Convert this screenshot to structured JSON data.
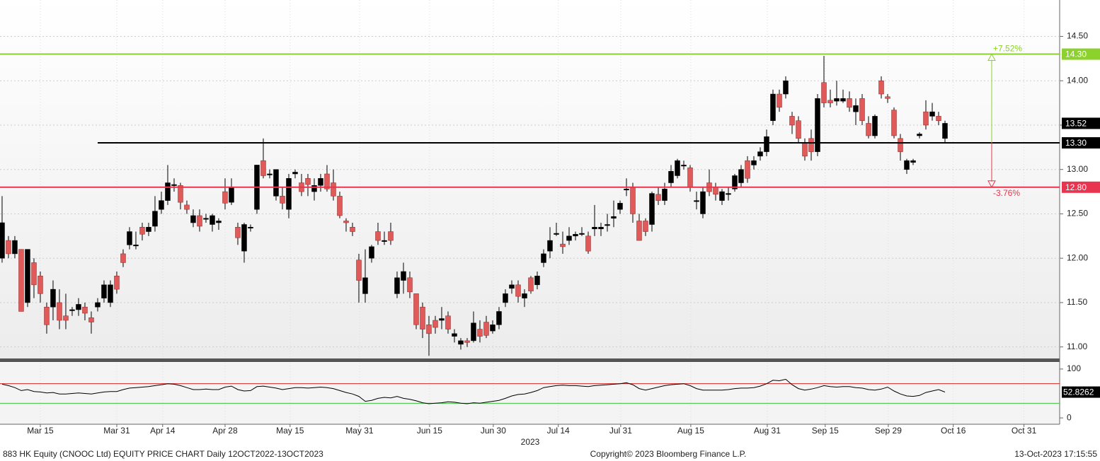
{
  "chart_data": {
    "type": "candlestick",
    "title": "883 HK Equity (CNOOC Ltd) EQUITY PRICE CHART  Daily 12OCT2022-13OCT2023",
    "copyright": "Copyright© 2023 Bloomberg Finance L.P.",
    "timestamp": "13-Oct-2023 17:15:55",
    "year_label": "2023",
    "up_color": "#000000",
    "down_color": "#e05a5a",
    "candles": [
      [
        12.0,
        12.7,
        11.95,
        12.4
      ],
      [
        12.2,
        12.25,
        12.0,
        12.05
      ],
      [
        12.05,
        12.25,
        12.0,
        12.2
      ],
      [
        12.1,
        12.1,
        11.4,
        11.4
      ],
      [
        11.5,
        12.1,
        11.45,
        12.1
      ],
      [
        11.95,
        12.0,
        11.55,
        11.7
      ],
      [
        11.8,
        11.85,
        11.5,
        11.6
      ],
      [
        11.45,
        11.5,
        11.15,
        11.25
      ],
      [
        11.45,
        11.75,
        11.3,
        11.65
      ],
      [
        11.5,
        11.65,
        11.2,
        11.3
      ],
      [
        11.35,
        11.6,
        11.2,
        11.3
      ],
      [
        11.42,
        11.45,
        11.35,
        11.42
      ],
      [
        11.42,
        11.55,
        11.35,
        11.48
      ],
      [
        11.45,
        11.5,
        11.3,
        11.38
      ],
      [
        11.33,
        11.4,
        11.15,
        11.28
      ],
      [
        11.45,
        11.55,
        11.4,
        11.5
      ],
      [
        11.55,
        11.75,
        11.5,
        11.7
      ],
      [
        11.5,
        11.75,
        11.45,
        11.7
      ],
      [
        11.8,
        11.85,
        11.6,
        11.65
      ],
      [
        12.05,
        12.1,
        11.9,
        11.95
      ],
      [
        12.15,
        12.35,
        12.1,
        12.3
      ],
      [
        12.15,
        12.3,
        12.1,
        12.15
      ],
      [
        12.35,
        12.4,
        12.2,
        12.27
      ],
      [
        12.3,
        12.4,
        12.25,
        12.35
      ],
      [
        12.36,
        12.7,
        12.3,
        12.53
      ],
      [
        12.55,
        12.75,
        12.5,
        12.65
      ],
      [
        12.65,
        13.05,
        12.6,
        12.85
      ],
      [
        12.83,
        12.9,
        12.75,
        12.83
      ],
      [
        12.82,
        12.85,
        12.55,
        12.63
      ],
      [
        12.6,
        12.65,
        12.5,
        12.55
      ],
      [
        12.4,
        12.55,
        12.35,
        12.48
      ],
      [
        12.48,
        12.55,
        12.3,
        12.36
      ],
      [
        12.45,
        12.5,
        12.4,
        12.45
      ],
      [
        12.38,
        12.5,
        12.3,
        12.48
      ],
      [
        12.4,
        12.45,
        12.32,
        12.42
      ],
      [
        12.75,
        12.9,
        12.55,
        12.62
      ],
      [
        12.63,
        12.9,
        12.6,
        12.8
      ],
      [
        12.35,
        12.4,
        12.15,
        12.23
      ],
      [
        12.08,
        12.4,
        11.95,
        12.38
      ],
      [
        12.35,
        12.38,
        12.3,
        12.35
      ],
      [
        12.55,
        13.05,
        12.5,
        13.05
      ],
      [
        13.1,
        13.35,
        12.9,
        12.93
      ],
      [
        12.95,
        13.0,
        12.9,
        12.95
      ],
      [
        12.7,
        13.0,
        12.65,
        13.0
      ],
      [
        12.7,
        12.8,
        12.55,
        12.62
      ],
      [
        12.55,
        12.95,
        12.45,
        12.9
      ],
      [
        12.95,
        13.0,
        12.9,
        12.97
      ],
      [
        12.85,
        12.95,
        12.7,
        12.75
      ],
      [
        12.9,
        12.95,
        12.7,
        12.83
      ],
      [
        12.75,
        12.9,
        12.65,
        12.82
      ],
      [
        12.82,
        12.95,
        12.75,
        12.9
      ],
      [
        12.95,
        13.05,
        12.75,
        12.78
      ],
      [
        12.85,
        13.0,
        12.65,
        12.7
      ],
      [
        12.7,
        12.75,
        12.45,
        12.48
      ],
      [
        12.42,
        12.45,
        12.3,
        12.4
      ],
      [
        12.35,
        12.4,
        12.25,
        12.3
      ],
      [
        11.98,
        12.05,
        11.5,
        11.75
      ],
      [
        11.6,
        12.1,
        11.5,
        11.78
      ],
      [
        12.0,
        12.15,
        11.95,
        12.13
      ],
      [
        12.3,
        12.4,
        12.15,
        12.2
      ],
      [
        12.2,
        12.3,
        12.15,
        12.2
      ],
      [
        12.3,
        12.4,
        12.15,
        12.2
      ],
      [
        11.6,
        11.85,
        11.55,
        11.78
      ],
      [
        11.75,
        11.95,
        11.6,
        11.85
      ],
      [
        11.78,
        11.85,
        11.55,
        11.62
      ],
      [
        11.6,
        11.6,
        11.2,
        11.25
      ],
      [
        11.45,
        11.5,
        11.1,
        11.2
      ],
      [
        11.25,
        11.35,
        10.9,
        11.15
      ],
      [
        11.3,
        11.35,
        11.15,
        11.22
      ],
      [
        11.3,
        11.45,
        11.2,
        11.32
      ],
      [
        11.35,
        11.4,
        11.15,
        11.2
      ],
      [
        11.12,
        11.2,
        11.05,
        11.15
      ],
      [
        11.03,
        11.1,
        10.97,
        11.07
      ],
      [
        11.07,
        11.1,
        11.0,
        11.05
      ],
      [
        11.07,
        11.4,
        11.05,
        11.27
      ],
      [
        11.2,
        11.3,
        11.05,
        11.12
      ],
      [
        11.28,
        11.35,
        11.1,
        11.13
      ],
      [
        11.18,
        11.3,
        11.15,
        11.25
      ],
      [
        11.25,
        11.45,
        11.2,
        11.4
      ],
      [
        11.5,
        11.65,
        11.45,
        11.6
      ],
      [
        11.66,
        11.75,
        11.6,
        11.7
      ],
      [
        11.7,
        11.75,
        11.5,
        11.57
      ],
      [
        11.55,
        11.65,
        11.45,
        11.6
      ],
      [
        11.78,
        11.8,
        11.6,
        11.63
      ],
      [
        11.7,
        11.85,
        11.65,
        11.8
      ],
      [
        11.95,
        12.1,
        11.9,
        12.05
      ],
      [
        12.08,
        12.35,
        12.0,
        12.2
      ],
      [
        12.28,
        12.4,
        12.25,
        12.28
      ],
      [
        12.16,
        12.3,
        12.05,
        12.13
      ],
      [
        12.2,
        12.35,
        12.15,
        12.25
      ],
      [
        12.25,
        12.3,
        12.2,
        12.27
      ],
      [
        12.28,
        12.35,
        12.25,
        12.28
      ],
      [
        12.25,
        12.3,
        12.05,
        12.08
      ],
      [
        12.33,
        12.6,
        12.25,
        12.35
      ],
      [
        12.33,
        12.4,
        12.25,
        12.35
      ],
      [
        12.38,
        12.5,
        12.3,
        12.38
      ],
      [
        12.45,
        12.65,
        12.35,
        12.47
      ],
      [
        12.55,
        12.65,
        12.5,
        12.62
      ],
      [
        12.78,
        12.9,
        12.7,
        12.78
      ],
      [
        12.8,
        12.85,
        12.4,
        12.5
      ],
      [
        12.42,
        12.5,
        12.2,
        12.2
      ],
      [
        12.42,
        12.45,
        12.25,
        12.3
      ],
      [
        12.38,
        12.75,
        12.3,
        12.73
      ],
      [
        12.72,
        12.8,
        12.6,
        12.65
      ],
      [
        12.65,
        12.85,
        12.6,
        12.78
      ],
      [
        12.85,
        13.05,
        12.8,
        12.98
      ],
      [
        12.93,
        13.12,
        12.9,
        13.1
      ],
      [
        13.05,
        13.1,
        13.0,
        13.05
      ],
      [
        13.02,
        13.05,
        12.75,
        12.8
      ],
      [
        12.65,
        12.75,
        12.55,
        12.65
      ],
      [
        12.5,
        12.8,
        12.45,
        12.75
      ],
      [
        12.85,
        13.0,
        12.7,
        12.75
      ],
      [
        12.8,
        12.85,
        12.65,
        12.72
      ],
      [
        12.65,
        12.78,
        12.6,
        12.75
      ],
      [
        12.72,
        12.8,
        12.65,
        12.73
      ],
      [
        12.78,
        12.95,
        12.75,
        12.93
      ],
      [
        12.85,
        13.05,
        12.8,
        13.0
      ],
      [
        13.1,
        13.15,
        12.85,
        12.9
      ],
      [
        13.05,
        13.15,
        13.0,
        13.1
      ],
      [
        13.15,
        13.25,
        13.1,
        13.2
      ],
      [
        13.2,
        13.45,
        13.15,
        13.37
      ],
      [
        13.55,
        13.9,
        13.5,
        13.85
      ],
      [
        13.85,
        13.9,
        13.65,
        13.7
      ],
      [
        13.85,
        14.05,
        13.8,
        14.0
      ],
      [
        13.6,
        13.65,
        13.4,
        13.5
      ],
      [
        13.55,
        13.6,
        13.3,
        13.35
      ],
      [
        13.3,
        13.35,
        13.1,
        13.15
      ],
      [
        13.35,
        13.45,
        13.1,
        13.2
      ],
      [
        13.2,
        13.85,
        13.15,
        13.8
      ],
      [
        13.98,
        14.28,
        13.7,
        13.75
      ],
      [
        13.78,
        13.9,
        13.7,
        13.75
      ],
      [
        13.77,
        14.0,
        13.72,
        13.8
      ],
      [
        13.77,
        13.9,
        13.75,
        13.8
      ],
      [
        13.8,
        13.88,
        13.65,
        13.7
      ],
      [
        13.65,
        13.8,
        13.5,
        13.72
      ],
      [
        13.8,
        13.85,
        13.5,
        13.55
      ],
      [
        13.52,
        13.6,
        13.35,
        13.38
      ],
      [
        13.38,
        13.62,
        13.35,
        13.6
      ],
      [
        14.0,
        14.05,
        13.8,
        13.85
      ],
      [
        13.82,
        13.85,
        13.75,
        13.8
      ],
      [
        13.67,
        13.7,
        13.35,
        13.38
      ],
      [
        13.35,
        13.4,
        13.1,
        13.2
      ],
      [
        13.0,
        13.12,
        12.95,
        13.1
      ],
      [
        13.08,
        13.12,
        13.05,
        13.1
      ],
      [
        13.38,
        13.42,
        13.35,
        13.4
      ],
      [
        13.65,
        13.78,
        13.45,
        13.5
      ],
      [
        13.6,
        13.75,
        13.55,
        13.65
      ],
      [
        13.6,
        13.65,
        13.5,
        13.55
      ],
      [
        13.35,
        13.55,
        13.3,
        13.52
      ]
    ],
    "xlim": [
      -0.33,
      166
    ],
    "xticks": [
      {
        "value": 6,
        "label": "Mar 15"
      },
      {
        "value": 18,
        "label": "Mar 31"
      },
      {
        "value": 25.2,
        "label": "Apr 14"
      },
      {
        "value": 35,
        "label": "Apr 28"
      },
      {
        "value": 45.2,
        "label": "May 15"
      },
      {
        "value": 56.1,
        "label": "May 31"
      },
      {
        "value": 67.1,
        "label": "Jun 15"
      },
      {
        "value": 77.1,
        "label": "Jun 30"
      },
      {
        "value": 87.3,
        "label": "Jul 14"
      },
      {
        "value": 97.1,
        "label": "Jul 31"
      },
      {
        "value": 108.1,
        "label": "Aug 15"
      },
      {
        "value": 120.1,
        "label": "Aug 31"
      },
      {
        "value": 129.2,
        "label": "Sep 15"
      },
      {
        "value": 139.1,
        "label": "Sep 29"
      },
      {
        "value": 149.3,
        "label": "Oct 16"
      },
      {
        "value": 160.4,
        "label": "Oct 31"
      }
    ],
    "ylim": [
      10.87,
      14.91
    ],
    "yticks": [
      {
        "value": 11,
        "label": "11.00"
      },
      {
        "value": 11.5,
        "label": "11.50"
      },
      {
        "value": 12,
        "label": "12.00"
      },
      {
        "value": 12.5,
        "label": "12.50"
      },
      {
        "value": 13,
        "label": "13.00"
      },
      {
        "value": 13.5,
        "label": "13.50"
      },
      {
        "value": 14,
        "label": "14.00"
      },
      {
        "value": 14.5,
        "label": "14.50"
      }
    ],
    "grid": true,
    "last_price": 13.52,
    "levels": [
      {
        "value": 14.3,
        "label": "14.30",
        "color": "#8cd12c"
      },
      {
        "value": 13.3,
        "label": "13.30",
        "color": "#000000",
        "start_x": 15
      },
      {
        "value": 12.8,
        "label": "12.80",
        "color": "#e8344e"
      }
    ],
    "annotations": [
      {
        "text": "+7.52%",
        "color": "#8cd12c"
      },
      {
        "text": "-3.76%",
        "color": "#e8344e"
      }
    ],
    "rsi": {
      "values": [
        69,
        66,
        62,
        56,
        58,
        54,
        53,
        51,
        52,
        49,
        49,
        50,
        51,
        50,
        49,
        51,
        53,
        54,
        54,
        58,
        61,
        62,
        63,
        64,
        66,
        68,
        70,
        69,
        66,
        62,
        58,
        58,
        59,
        58,
        58,
        63,
        65,
        58,
        55,
        56,
        64,
        65,
        63,
        61,
        58,
        60,
        62,
        62,
        61,
        62,
        63,
        62,
        60,
        56,
        52,
        49,
        44,
        34,
        36,
        40,
        42,
        41,
        44,
        40,
        38,
        35,
        31,
        29,
        30,
        31,
        33,
        32,
        30,
        29,
        31,
        30,
        32,
        34,
        36,
        40,
        45,
        48,
        49,
        52,
        56,
        62,
        64,
        66,
        67,
        66,
        66,
        65,
        64,
        66,
        67,
        68,
        69,
        70,
        72,
        68,
        60,
        57,
        60,
        63,
        66,
        68,
        69,
        70,
        66,
        60,
        57,
        57,
        57,
        57,
        58,
        60,
        61,
        61,
        62,
        65,
        70,
        77,
        76,
        79,
        68,
        60,
        57,
        59,
        62,
        66,
        64,
        63,
        64,
        64,
        62,
        61,
        58,
        57,
        59,
        63,
        55,
        49,
        45,
        44,
        46,
        52,
        55,
        58,
        52.8262
      ],
      "ylim": [
        -12.9,
        112.9
      ],
      "yticks": [
        0,
        100
      ],
      "levels": [
        {
          "value": 70,
          "color": "#d62828"
        },
        {
          "value": 30,
          "color": "#3ec43e"
        }
      ]
    }
  }
}
